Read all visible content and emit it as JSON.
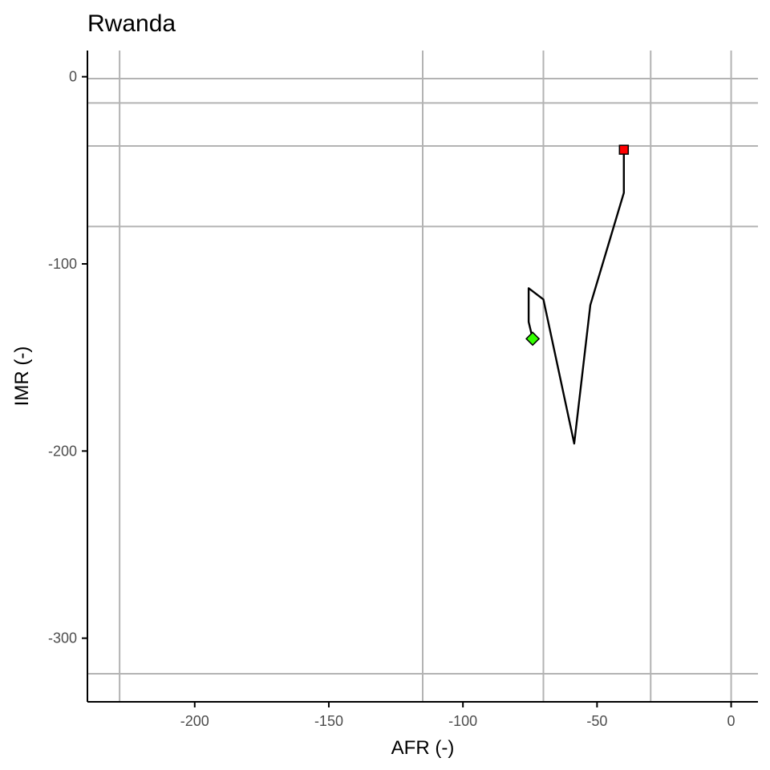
{
  "chart_data": {
    "type": "line",
    "title": "Rwanda",
    "xlabel": "AFR (-)",
    "ylabel": "IMR (-)",
    "xlim": [
      -240,
      10
    ],
    "ylim": [
      -334,
      14
    ],
    "grid": false,
    "x_ticks": [
      -200,
      -150,
      -100,
      -50,
      0
    ],
    "y_ticks": [
      0,
      -100,
      -200,
      -300
    ],
    "x_tick_labels": [
      "-200",
      "-150",
      "-100",
      "-50",
      "0"
    ],
    "y_tick_labels": [
      "0",
      "-100",
      "-200",
      "-300"
    ],
    "vertical_reference_lines": [
      -228,
      -115,
      -70,
      -30,
      0
    ],
    "horizontal_reference_lines": [
      -1,
      -14,
      -37,
      -80,
      -319
    ],
    "series": [
      {
        "x": [
          -74,
          -75.5,
          -75.5,
          -70,
          -58.5,
          -52.5,
          -40,
          -40
        ],
        "y": [
          -140,
          -131,
          -113,
          -119,
          -196,
          -122,
          -62,
          -39
        ]
      }
    ],
    "start_marker": {
      "x": -74,
      "y": -140,
      "shape": "diamond",
      "color": "#33ff00"
    },
    "end_marker": {
      "x": -40,
      "y": -39,
      "shape": "square",
      "color": "#ff0000"
    }
  }
}
